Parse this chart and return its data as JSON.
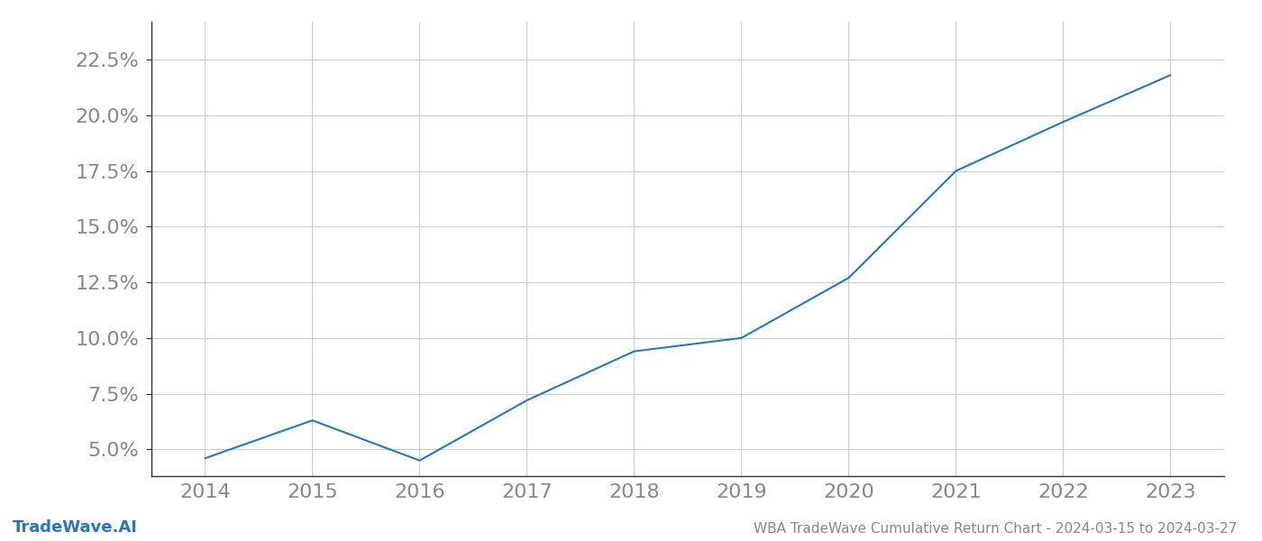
{
  "x_values": [
    2014,
    2015,
    2016,
    2017,
    2018,
    2019,
    2020,
    2021,
    2022,
    2023
  ],
  "y_values": [
    4.6,
    6.3,
    4.5,
    7.2,
    9.4,
    10.0,
    12.7,
    17.5,
    19.7,
    21.8
  ],
  "line_color": "#2878b5",
  "line_width": 1.5,
  "title": "WBA TradeWave Cumulative Return Chart - 2024-03-15 to 2024-03-27",
  "watermark": "TradeWave.AI",
  "xlim": [
    2013.5,
    2023.5
  ],
  "ylim": [
    3.8,
    24.2
  ],
  "yticks": [
    5.0,
    7.5,
    10.0,
    12.5,
    15.0,
    17.5,
    20.0,
    22.5
  ],
  "xticks": [
    2014,
    2015,
    2016,
    2017,
    2018,
    2019,
    2020,
    2021,
    2022,
    2023
  ],
  "background_color": "#ffffff",
  "grid_color": "#cccccc",
  "tick_color": "#888888",
  "spine_color": "#333333",
  "title_fontsize": 11,
  "watermark_fontsize": 13,
  "tick_fontsize": 16,
  "xlabel_fontsize": 16
}
